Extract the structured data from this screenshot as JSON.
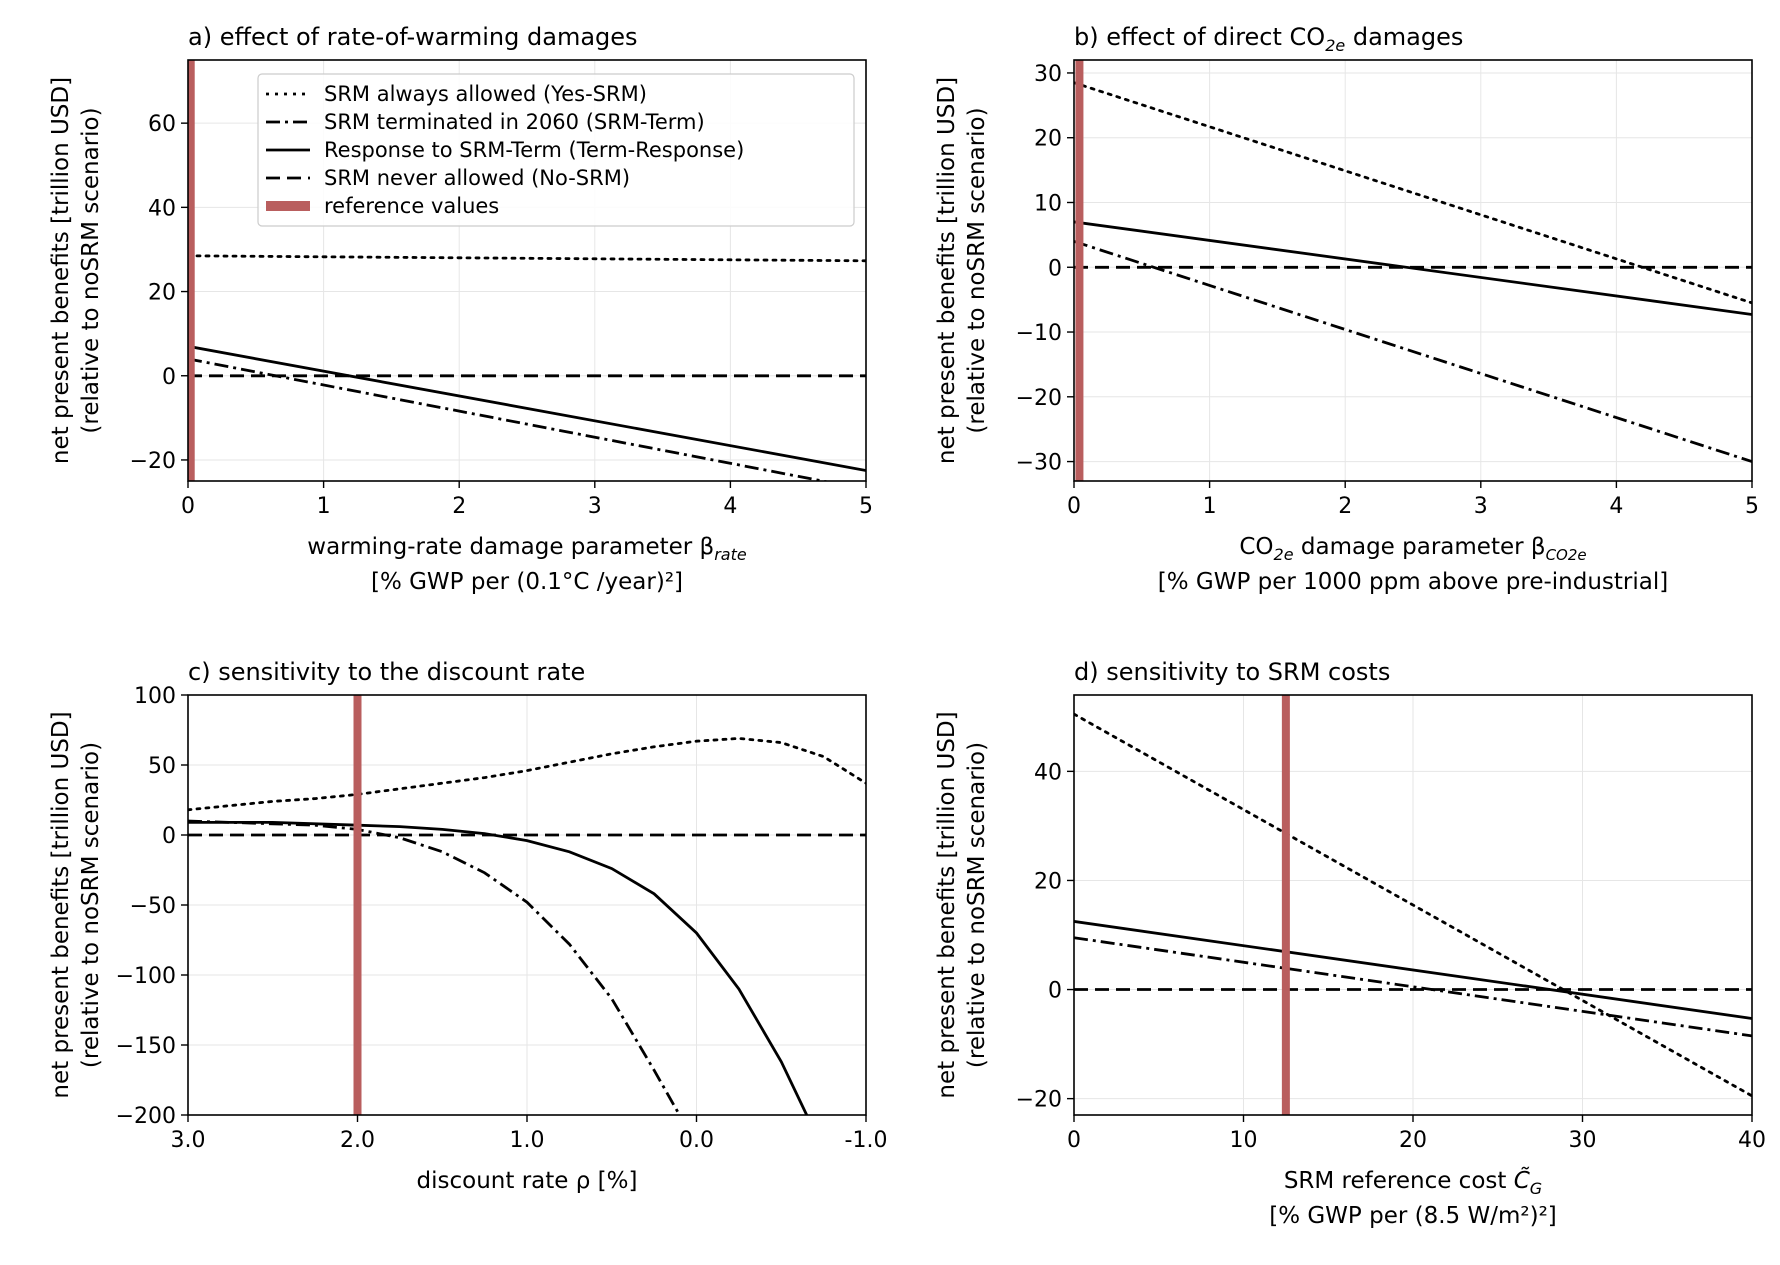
{
  "chart_data": [
    {
      "id": "a",
      "type": "line",
      "title": "a) effect of rate-of-warming damages",
      "xlabel": "warming-rate damage parameter β_rate",
      "xlabel_line2": "[% GWP per (0.1°C /year)²]",
      "ylabel": "net present benefits [trillion USD]",
      "ylabel_line2": "(relative to noSRM scenario)",
      "xlim": [
        0,
        5
      ],
      "ylim": [
        -25,
        75
      ],
      "xticks": [
        0,
        1,
        2,
        3,
        4,
        5
      ],
      "xtick_labels": [
        "0",
        "1",
        "2",
        "3",
        "4",
        "5"
      ],
      "yticks": [
        -20,
        0,
        20,
        40,
        60
      ],
      "ytick_labels": [
        "−20",
        "0",
        "20",
        "40",
        "60"
      ],
      "grid": true,
      "reference_x": 0.02,
      "legend": {
        "placement": "top-right",
        "entries": [
          {
            "label": "SRM always allowed (Yes-SRM)",
            "style": "dotted"
          },
          {
            "label": "SRM terminated in 2060 (SRM-Term)",
            "style": "dashdot"
          },
          {
            "label": "Response to SRM-Term (Term-Response)",
            "style": "solid"
          },
          {
            "label": "SRM never allowed (No-SRM)",
            "style": "dashed"
          },
          {
            "label": "reference values",
            "style": "reference"
          }
        ]
      },
      "series": [
        {
          "name": "SRM always allowed (Yes-SRM)",
          "style": "dotted",
          "x": [
            0,
            5
          ],
          "y": [
            28.5,
            27.3
          ]
        },
        {
          "name": "SRM terminated in 2060 (SRM-Term)",
          "style": "dashdot",
          "x": [
            0,
            5
          ],
          "y": [
            4.0,
            -27.0
          ]
        },
        {
          "name": "Response to SRM-Term (Term-Response)",
          "style": "solid",
          "x": [
            0,
            5
          ],
          "y": [
            7.0,
            -22.5
          ]
        },
        {
          "name": "SRM never allowed (No-SRM)",
          "style": "dashed",
          "x": [
            0,
            5
          ],
          "y": [
            0,
            0
          ]
        }
      ]
    },
    {
      "id": "b",
      "type": "line",
      "title": "b) effect of direct CO",
      "title_sub": "2e",
      "title_after": " damages",
      "xlabel": "CO",
      "xlabel_sub": "2e",
      "xlabel_after": " damage parameter β",
      "xlabel_sub2": "CO2e",
      "xlabel_line2": "[% GWP per 1000 ppm above pre-industrial]",
      "ylabel": "net present benefits [trillion USD]",
      "ylabel_line2": "(relative to noSRM scenario)",
      "xlim": [
        0,
        5
      ],
      "ylim": [
        -33,
        32
      ],
      "xticks": [
        0,
        1,
        2,
        3,
        4,
        5
      ],
      "xtick_labels": [
        "0",
        "1",
        "2",
        "3",
        "4",
        "5"
      ],
      "yticks": [
        -30,
        -20,
        -10,
        0,
        10,
        20,
        30
      ],
      "ytick_labels": [
        "−30",
        "−20",
        "−10",
        "0",
        "10",
        "20",
        "30"
      ],
      "grid": true,
      "reference_x": 0.04,
      "series": [
        {
          "name": "SRM always allowed (Yes-SRM)",
          "style": "dotted",
          "x": [
            0,
            5
          ],
          "y": [
            28.5,
            -5.5
          ]
        },
        {
          "name": "SRM terminated in 2060 (SRM-Term)",
          "style": "dashdot",
          "x": [
            0,
            5
          ],
          "y": [
            4.0,
            -30.0
          ]
        },
        {
          "name": "Response to SRM-Term (Term-Response)",
          "style": "solid",
          "x": [
            0,
            5
          ],
          "y": [
            7.0,
            -7.3
          ]
        },
        {
          "name": "SRM never allowed (No-SRM)",
          "style": "dashed",
          "x": [
            0,
            5
          ],
          "y": [
            0,
            0
          ]
        }
      ]
    },
    {
      "id": "c",
      "type": "line",
      "title": "c) sensitivity to the discount rate",
      "xlabel": "discount rate ρ [%]",
      "ylabel": "net present benefits [trillion USD]",
      "ylabel_line2": "(relative to noSRM scenario)",
      "xlim": [
        3.0,
        -1.0
      ],
      "ylim": [
        -200,
        100
      ],
      "xticks": [
        3,
        2,
        1,
        0,
        -1
      ],
      "xtick_labels": [
        "3.0",
        "2.0",
        "1.0",
        "0.0",
        "-1.0"
      ],
      "yticks": [
        -200,
        -150,
        -100,
        -50,
        0,
        50,
        100
      ],
      "ytick_labels": [
        "−200",
        "−150",
        "−100",
        "−50",
        "0",
        "50",
        "100"
      ],
      "grid": true,
      "reference_x": 2.0,
      "series": [
        {
          "name": "SRM always allowed (Yes-SRM)",
          "style": "dotted",
          "x": [
            3.0,
            2.75,
            2.5,
            2.25,
            2.0,
            1.75,
            1.5,
            1.25,
            1.0,
            0.75,
            0.5,
            0.25,
            0.0,
            -0.25,
            -0.5,
            -0.75,
            -1.0
          ],
          "y": [
            18,
            21,
            24,
            26,
            29,
            33,
            37,
            41,
            46,
            52,
            58,
            63,
            67,
            69,
            66,
            56,
            37
          ]
        },
        {
          "name": "SRM terminated in 2060 (SRM-Term)",
          "style": "dashdot",
          "x": [
            3.0,
            2.75,
            2.5,
            2.25,
            2.0,
            1.75,
            1.5,
            1.25,
            1.0,
            0.75,
            0.5,
            0.25,
            0.1
          ],
          "y": [
            10,
            9,
            8,
            7,
            4,
            -2,
            -12,
            -27,
            -48,
            -78,
            -117,
            -168,
            -200
          ]
        },
        {
          "name": "Response to SRM-Term (Term-Response)",
          "style": "solid",
          "x": [
            3.0,
            2.5,
            2.0,
            1.75,
            1.5,
            1.25,
            1.0,
            0.75,
            0.5,
            0.25,
            0.0,
            -0.25,
            -0.5,
            -0.65
          ],
          "y": [
            9,
            9,
            7,
            6,
            4,
            1,
            -4,
            -12,
            -24,
            -42,
            -70,
            -110,
            -162,
            -200
          ]
        },
        {
          "name": "SRM never allowed (No-SRM)",
          "style": "dashed",
          "x": [
            3.0,
            -1.0
          ],
          "y": [
            0,
            0
          ]
        }
      ]
    },
    {
      "id": "d",
      "type": "line",
      "title": "d) sensitivity to SRM costs",
      "xlabel": "SRM reference cost ",
      "xlabel_symbol": "C̃",
      "xlabel_sub": "G",
      "xlabel_line2": "[% GWP per (8.5 W/m²)²]",
      "ylabel": "net present benefits [trillion USD]",
      "ylabel_line2": "(relative to noSRM scenario)",
      "xlim": [
        0,
        40
      ],
      "ylim": [
        -23,
        54
      ],
      "xticks": [
        0,
        10,
        20,
        30,
        40
      ],
      "xtick_labels": [
        "0",
        "10",
        "20",
        "30",
        "40"
      ],
      "yticks": [
        -20,
        0,
        20,
        40
      ],
      "ytick_labels": [
        "−20",
        "0",
        "20",
        "40"
      ],
      "grid": true,
      "reference_x": 12.5,
      "series": [
        {
          "name": "SRM always allowed (Yes-SRM)",
          "style": "dotted",
          "x": [
            0,
            40
          ],
          "y": [
            50.5,
            -19.5
          ]
        },
        {
          "name": "SRM terminated in 2060 (SRM-Term)",
          "style": "dashdot",
          "x": [
            0,
            40
          ],
          "y": [
            9.5,
            -8.5
          ]
        },
        {
          "name": "Response to SRM-Term (Term-Response)",
          "style": "solid",
          "x": [
            0,
            40
          ],
          "y": [
            12.5,
            -5.3
          ]
        },
        {
          "name": "SRM never allowed (No-SRM)",
          "style": "dashed",
          "x": [
            0,
            40
          ],
          "y": [
            0,
            0
          ]
        }
      ]
    }
  ],
  "colors": {
    "reference": "#b95e5e",
    "line": "#000000",
    "grid": "#e6e6e6"
  }
}
